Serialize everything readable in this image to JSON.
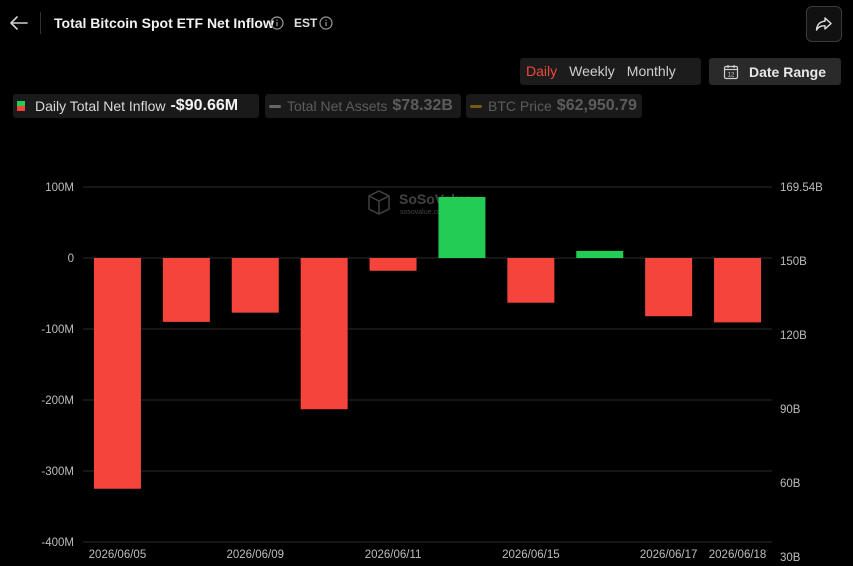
{
  "header": {
    "title": "Total Bitcoin Spot ETF Net Inflow",
    "timezone": "EST"
  },
  "period_tabs": [
    "Daily",
    "Weekly",
    "Monthly"
  ],
  "active_period": "Daily",
  "date_range_label": "Date Range",
  "legend": [
    {
      "name": "Daily Total Net Inflow",
      "value": "-$90.66M",
      "active": true
    },
    {
      "name": "Total Net Assets",
      "value": "$78.32B",
      "active": false
    },
    {
      "name": "BTC Price",
      "value": "$62,950.79",
      "active": false
    }
  ],
  "watermark": {
    "brand": "SoSoValue",
    "sub": "sosovalue.com"
  },
  "colors": {
    "positive": "#22cc55",
    "negative": "#f5443b",
    "active_tab": "#f0483e",
    "btc_price_line": "#7a5a10",
    "assets_line": "#666666"
  },
  "chart_data": {
    "type": "bar",
    "title": "Total Bitcoin Spot ETF Net Inflow",
    "series": [
      {
        "name": "Daily Total Net Inflow",
        "values": [
          -325,
          -90,
          -77,
          -213,
          -18,
          86,
          -63,
          10,
          -82,
          -90.66
        ]
      }
    ],
    "categories": [
      "2026/06/05",
      "",
      "2026/06/09",
      "",
      "2026/06/11",
      "",
      "2026/06/15",
      "",
      "2026/06/17",
      "2026/06/18"
    ],
    "y_left": {
      "ticks": [
        "100M",
        "0",
        "-100M",
        "-200M",
        "-300M",
        "-400M"
      ],
      "tick_values": [
        100,
        0,
        -100,
        -200,
        -300,
        -400
      ],
      "range": [
        -400,
        100
      ],
      "unit": "M"
    },
    "y_right": {
      "ticks": [
        "169.54B",
        "150B",
        "120B",
        "90B",
        "60B",
        "30B"
      ]
    },
    "grid": true
  }
}
